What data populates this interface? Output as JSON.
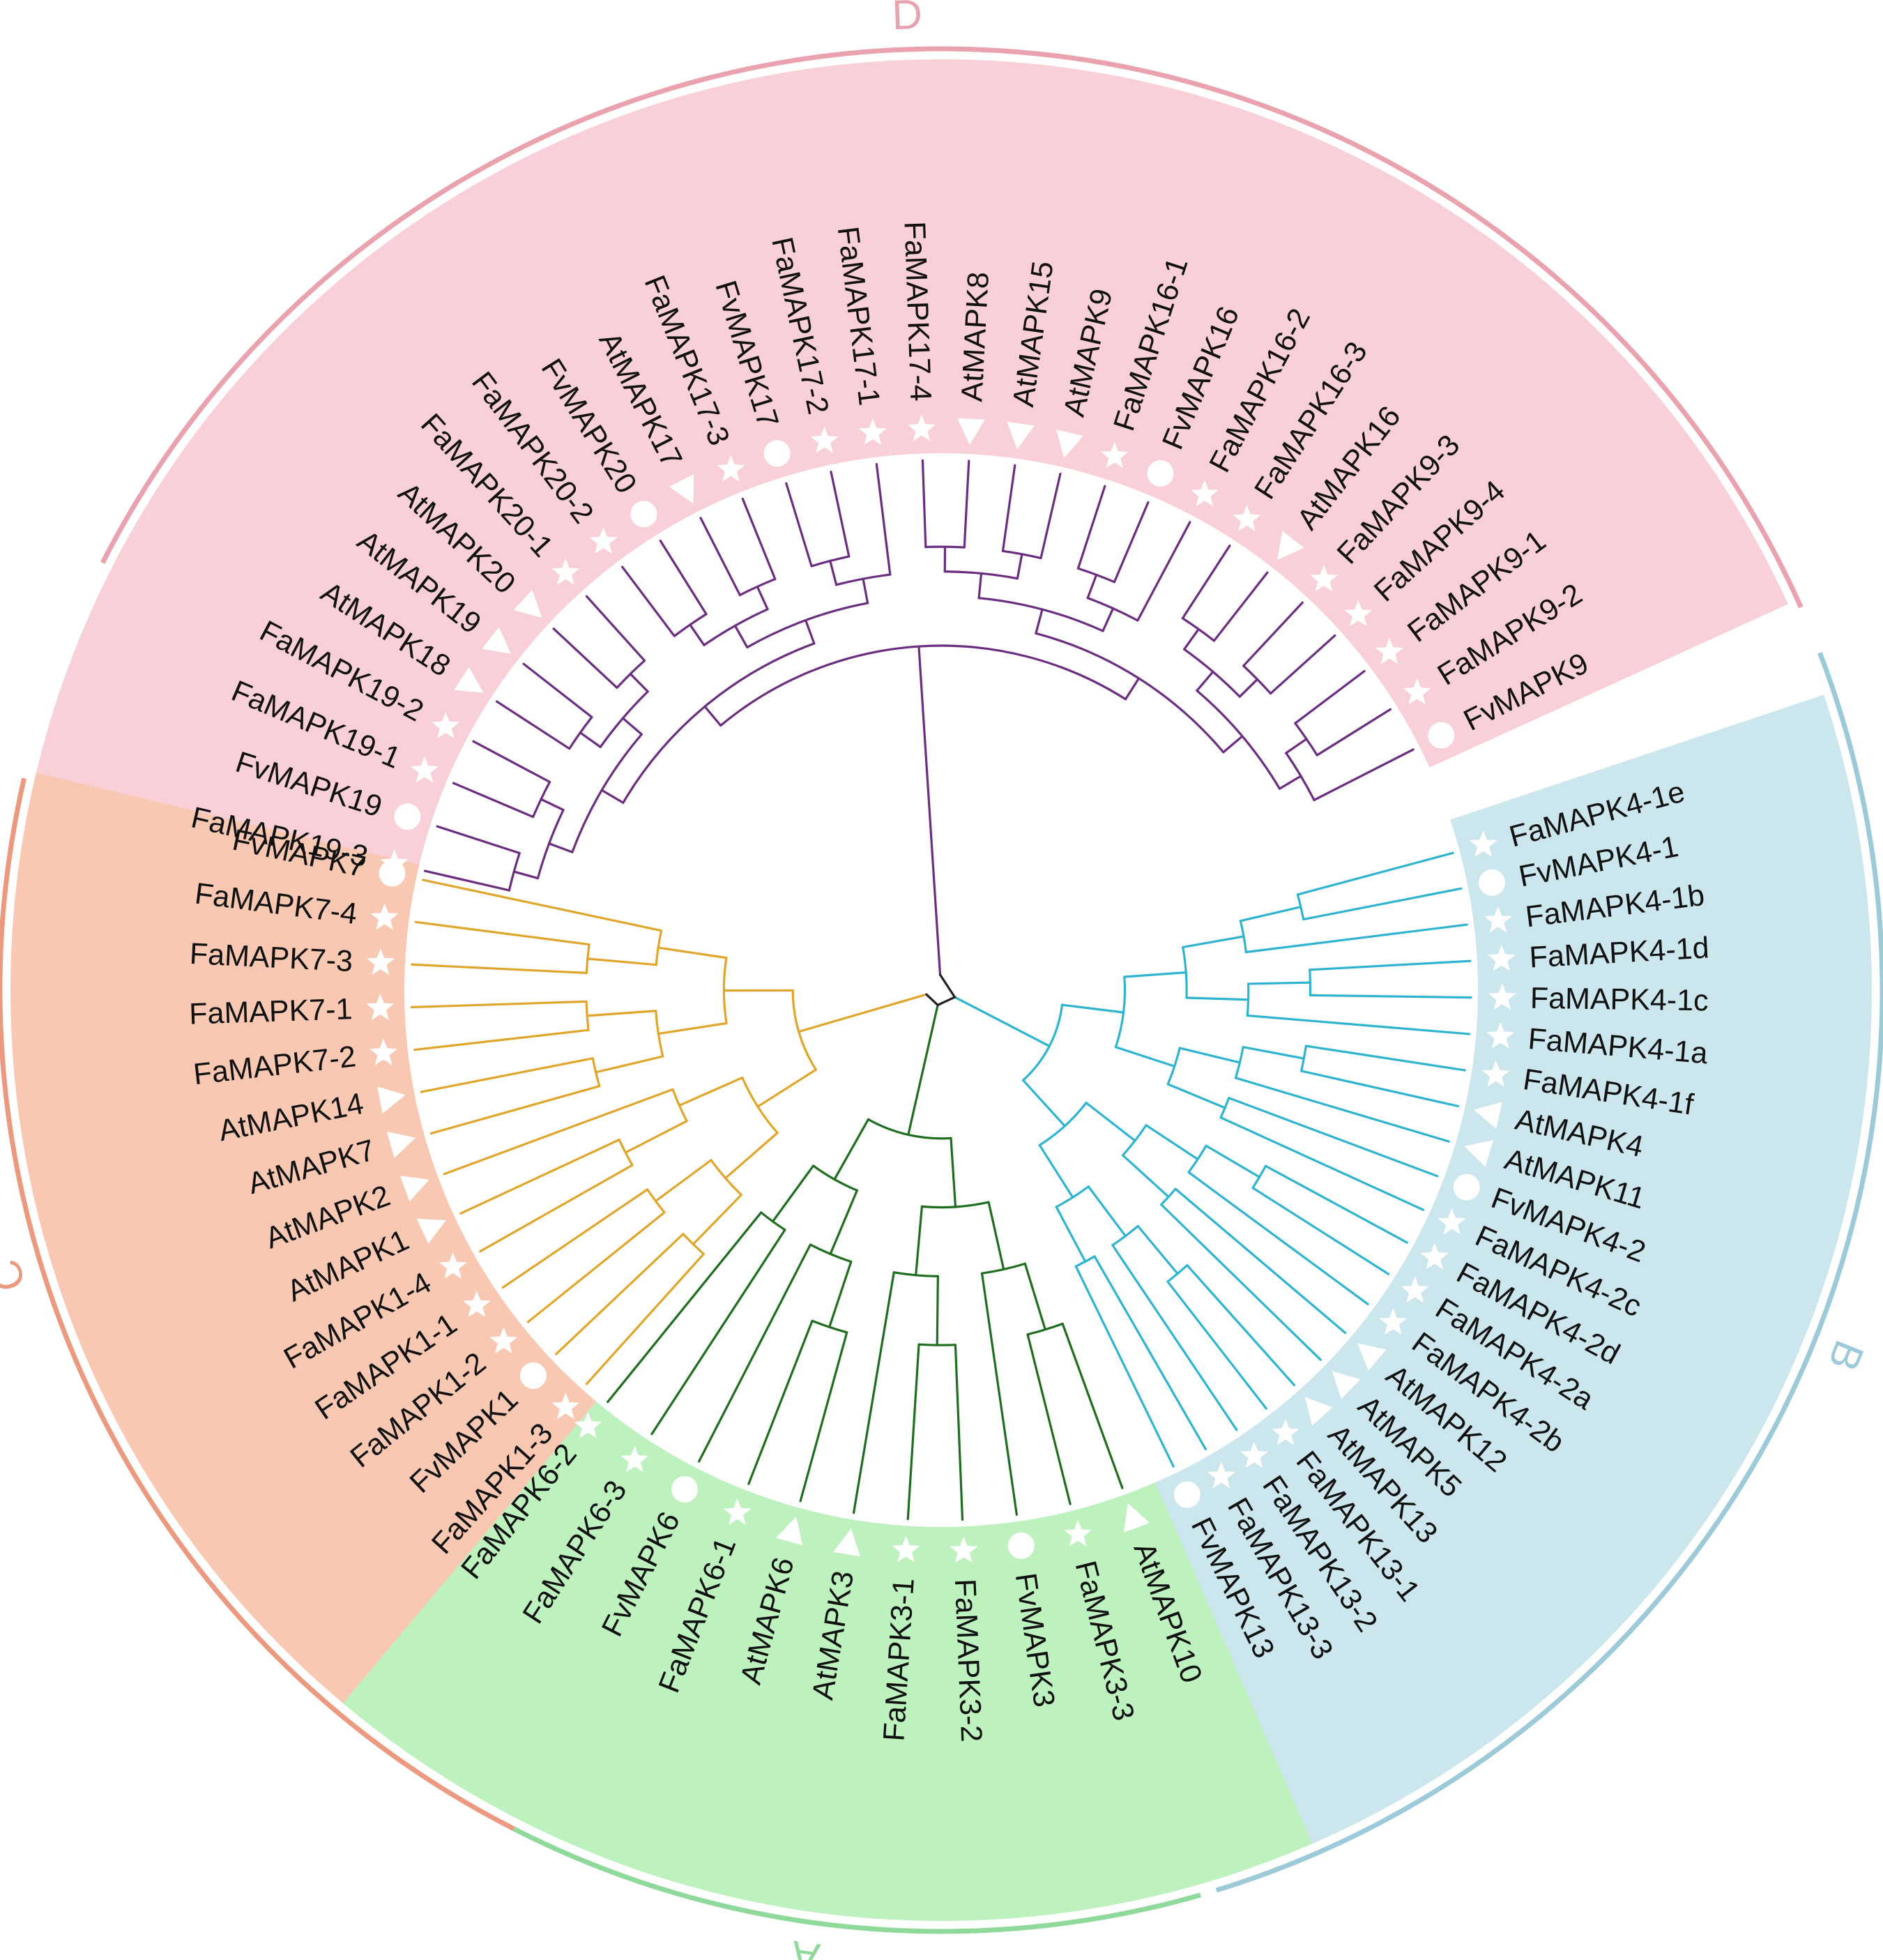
{
  "tree": {
    "clades": [
      {
        "id": "D",
        "label": "D",
        "sector_color": "#f9d0d7",
        "line_color": "#6b2d80",
        "arc_color": "#eaa3ae",
        "leaves": [
          {
            "name": "FaMAPK19-3",
            "marker": "star"
          },
          {
            "name": "FvMAPK19",
            "marker": "circle"
          },
          {
            "name": "FaMAPK19-1",
            "marker": "star"
          },
          {
            "name": "FaMAPK19-2",
            "marker": "star"
          },
          {
            "name": "AtMAPK18",
            "marker": "triangle"
          },
          {
            "name": "AtMAPK19",
            "marker": "triangle"
          },
          {
            "name": "AtMAPK20",
            "marker": "triangle"
          },
          {
            "name": "FaMAPK20-1",
            "marker": "star"
          },
          {
            "name": "FaMAPK20-2",
            "marker": "star"
          },
          {
            "name": "FvMAPK20",
            "marker": "circle"
          },
          {
            "name": "AtMAPK17",
            "marker": "triangle"
          },
          {
            "name": "FaMAPK17-3",
            "marker": "star"
          },
          {
            "name": "FvMAPK17",
            "marker": "circle"
          },
          {
            "name": "FaMAPK17-2",
            "marker": "star"
          },
          {
            "name": "FaMAPK17-1",
            "marker": "star"
          },
          {
            "name": "FaMAPK17-4",
            "marker": "star"
          },
          {
            "name": "AtMAPK8",
            "marker": "triangle"
          },
          {
            "name": "AtMAPK15",
            "marker": "triangle"
          },
          {
            "name": "AtMAPK9",
            "marker": "triangle"
          },
          {
            "name": "FaMAPK16-1",
            "marker": "star"
          },
          {
            "name": "FvMAPK16",
            "marker": "circle"
          },
          {
            "name": "FaMAPK16-2",
            "marker": "star"
          },
          {
            "name": "FaMAPK16-3",
            "marker": "star"
          },
          {
            "name": "AtMAPK16",
            "marker": "triangle"
          },
          {
            "name": "FaMAPK9-3",
            "marker": "star"
          },
          {
            "name": "FaMAPK9-4",
            "marker": "star"
          },
          {
            "name": "FaMAPK9-1",
            "marker": "star"
          },
          {
            "name": "FaMAPK9-2",
            "marker": "star"
          },
          {
            "name": "FvMAPK9",
            "marker": "circle"
          }
        ]
      },
      {
        "id": "B",
        "label": "B",
        "sector_color": "#cce6ee",
        "line_color": "#2fb4d0",
        "arc_color": "#9ccad8",
        "leaves": [
          {
            "name": "FaMAPK4-1e",
            "marker": "star"
          },
          {
            "name": "FvMAPK4-1",
            "marker": "circle"
          },
          {
            "name": "FaMAPK4-1b",
            "marker": "star"
          },
          {
            "name": "FaMAPK4-1d",
            "marker": "star"
          },
          {
            "name": "FaMAPK4-1c",
            "marker": "star"
          },
          {
            "name": "FaMAPK4-1a",
            "marker": "star"
          },
          {
            "name": "FaMAPK4-1f",
            "marker": "star"
          },
          {
            "name": "AtMAPK4",
            "marker": "triangle"
          },
          {
            "name": "AtMAPK11",
            "marker": "triangle"
          },
          {
            "name": "FvMAPK4-2",
            "marker": "circle"
          },
          {
            "name": "FaMAPK4-2c",
            "marker": "star"
          },
          {
            "name": "FaMAPK4-2d",
            "marker": "star"
          },
          {
            "name": "FaMAPK4-2a",
            "marker": "star"
          },
          {
            "name": "FaMAPK4-2b",
            "marker": "star"
          },
          {
            "name": "AtMAPK12",
            "marker": "triangle"
          },
          {
            "name": "AtMAPK5",
            "marker": "triangle"
          },
          {
            "name": "AtMAPK13",
            "marker": "triangle"
          },
          {
            "name": "FaMAPK13-1",
            "marker": "star"
          },
          {
            "name": "FaMAPK13-2",
            "marker": "star"
          },
          {
            "name": "FaMAPK13-3",
            "marker": "star"
          },
          {
            "name": "FvMAPK13",
            "marker": "circle"
          }
        ]
      },
      {
        "id": "A",
        "label": "A",
        "sector_color": "#bdf2bf",
        "line_color": "#1f6e1f",
        "arc_color": "#8fd99a",
        "leaves": [
          {
            "name": "AtMAPK10",
            "marker": "triangle"
          },
          {
            "name": "FaMAPK3-3",
            "marker": "star"
          },
          {
            "name": "FvMAPK3",
            "marker": "circle"
          },
          {
            "name": "FaMAPK3-2",
            "marker": "star"
          },
          {
            "name": "FaMAPK3-1",
            "marker": "star"
          },
          {
            "name": "AtMAPK3",
            "marker": "triangle"
          },
          {
            "name": "AtMAPK6",
            "marker": "triangle"
          },
          {
            "name": "FaMAPK6-1",
            "marker": "star"
          },
          {
            "name": "FvMAPK6",
            "marker": "circle"
          },
          {
            "name": "FaMAPK6-3",
            "marker": "star"
          },
          {
            "name": "FaMAPK6-2",
            "marker": "star"
          }
        ]
      },
      {
        "id": "C",
        "label": "C",
        "sector_color": "#f8c8b3",
        "line_color": "#e0a52b",
        "arc_color": "#ec9a7f",
        "leaves": [
          {
            "name": "FaMAPK1-3",
            "marker": "star"
          },
          {
            "name": "FvMAPK1",
            "marker": "circle"
          },
          {
            "name": "FaMAPK1-2",
            "marker": "star"
          },
          {
            "name": "FaMAPK1-1",
            "marker": "star"
          },
          {
            "name": "FaMAPK1-4",
            "marker": "star"
          },
          {
            "name": "AtMAPK1",
            "marker": "triangle"
          },
          {
            "name": "AtMAPK2",
            "marker": "triangle"
          },
          {
            "name": "AtMAPK7",
            "marker": "triangle"
          },
          {
            "name": "AtMAPK14",
            "marker": "triangle"
          },
          {
            "name": "FaMAPK7-2",
            "marker": "star"
          },
          {
            "name": "FaMAPK7-1",
            "marker": "star"
          },
          {
            "name": "FaMAPK7-3",
            "marker": "star"
          },
          {
            "name": "FaMAPK7-4",
            "marker": "star"
          },
          {
            "name": "FvMAPK7",
            "marker": "circle"
          }
        ]
      }
    ]
  }
}
